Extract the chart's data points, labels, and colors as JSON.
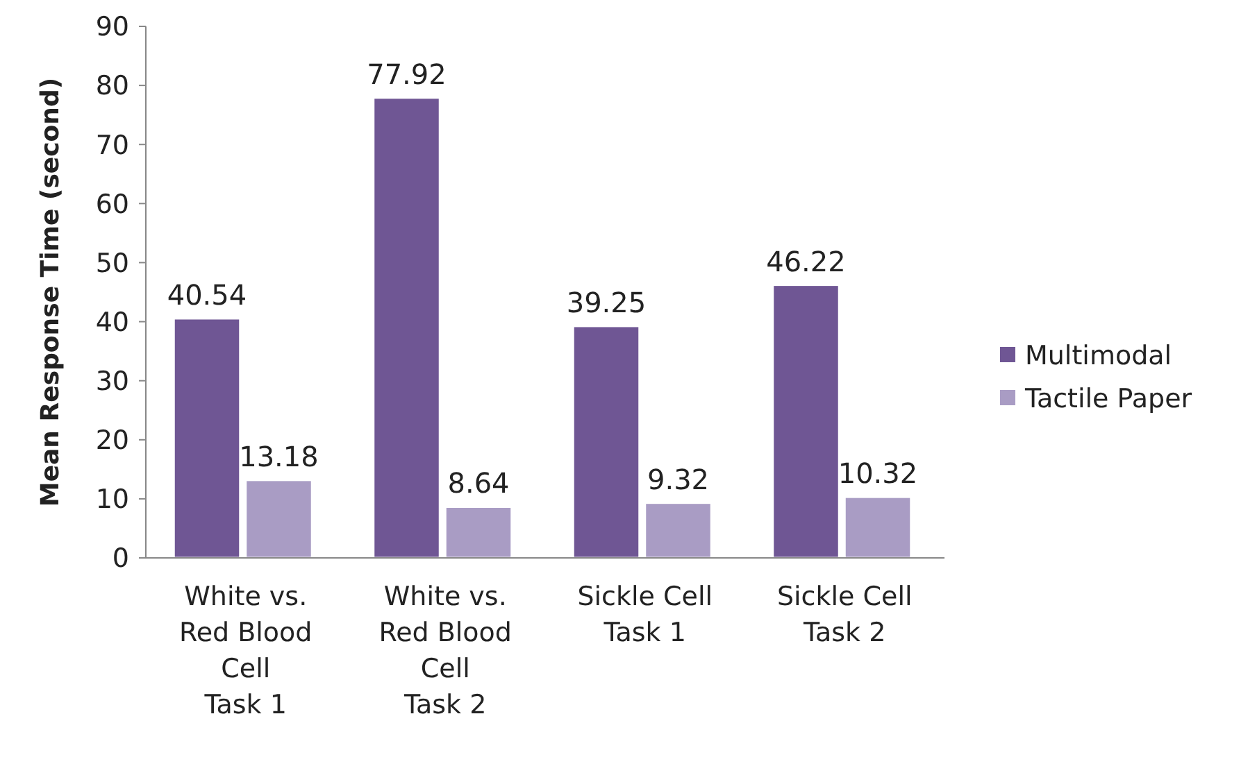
{
  "chart_data": {
    "type": "bar",
    "ylabel": "Mean Response Time (second)",
    "categories": [
      "White vs.\nRed Blood\nCell\nTask 1",
      "White vs.\nRed Blood\nCell\nTask 2",
      "Sickle Cell\nTask 1",
      "Sickle Cell\nTask 2"
    ],
    "series": [
      {
        "name": "Multimodal",
        "color": "#6f5694",
        "values": [
          40.54,
          77.92,
          39.25,
          46.22
        ]
      },
      {
        "name": "Tactile Paper",
        "color": "#a99cc4",
        "values": [
          13.18,
          8.64,
          9.32,
          10.32
        ]
      }
    ],
    "ylim": [
      0,
      90
    ],
    "yticks": [
      0,
      10,
      20,
      30,
      40,
      50,
      60,
      70,
      80,
      90
    ],
    "data_labels": true,
    "legend": "right",
    "grid": false
  }
}
